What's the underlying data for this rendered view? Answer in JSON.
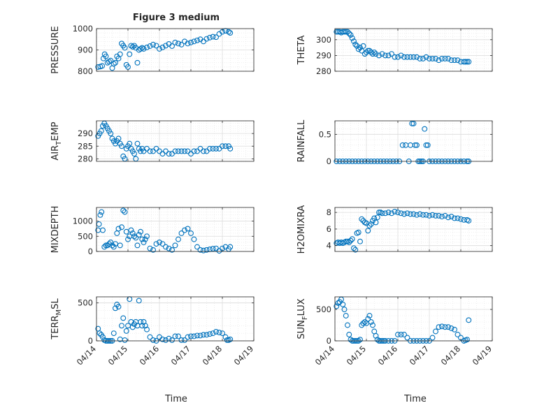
{
  "figure": {
    "title": "Figure 3 medium",
    "xlabel": "Time",
    "marker_color": "#0072bd",
    "grid": true
  },
  "chart_data": [
    {
      "type": "scatter",
      "ylabel": "PRESSURE",
      "sub": "",
      "x_ticks": [
        "04/14",
        "04/15",
        "04/16",
        "04/17",
        "04/18",
        "04/19"
      ],
      "xlim": [
        0,
        5
      ],
      "ylim": [
        800,
        1000
      ],
      "yticks": [
        800,
        900,
        1000
      ],
      "series": [
        {
          "x": [
            0.05,
            0.12,
            0.18,
            0.22,
            0.26,
            0.3,
            0.35,
            0.4,
            0.45,
            0.5,
            0.55,
            0.6,
            0.65,
            0.7,
            0.75,
            0.8,
            0.85,
            0.9,
            0.95,
            1.0,
            1.05,
            1.1,
            1.15,
            1.2,
            1.25,
            1.3,
            1.35,
            1.4,
            1.45,
            1.5,
            1.6,
            1.7,
            1.8,
            1.9,
            2.0,
            2.1,
            2.2,
            2.3,
            2.4,
            2.5,
            2.6,
            2.7,
            2.8,
            2.9,
            3.0,
            3.1,
            3.2,
            3.3,
            3.4,
            3.5,
            3.6,
            3.7,
            3.8,
            3.9,
            4.0,
            4.1,
            4.2,
            4.25
          ],
          "y": [
            820,
            822,
            825,
            860,
            880,
            870,
            840,
            845,
            850,
            815,
            835,
            840,
            870,
            860,
            880,
            930,
            920,
            910,
            830,
            820,
            880,
            920,
            915,
            920,
            910,
            840,
            900,
            905,
            910,
            905,
            912,
            918,
            925,
            920,
            905,
            912,
            920,
            928,
            918,
            935,
            930,
            925,
            940,
            930,
            935,
            940,
            945,
            950,
            940,
            952,
            958,
            962,
            960,
            975,
            985,
            990,
            985,
            980
          ]
        }
      ]
    },
    {
      "type": "scatter",
      "ylabel": "THETA",
      "sub": "",
      "x_ticks": [
        "04/14",
        "04/15",
        "04/16",
        "04/17",
        "04/18",
        "04/19"
      ],
      "xlim": [
        0,
        5
      ],
      "ylim": [
        280,
        307
      ],
      "yticks": [
        280,
        290,
        300
      ],
      "series": [
        {
          "x": [
            0.05,
            0.1,
            0.15,
            0.2,
            0.25,
            0.3,
            0.35,
            0.4,
            0.45,
            0.5,
            0.55,
            0.6,
            0.65,
            0.7,
            0.75,
            0.8,
            0.85,
            0.9,
            0.95,
            1.0,
            1.05,
            1.1,
            1.15,
            1.2,
            1.25,
            1.3,
            1.4,
            1.5,
            1.6,
            1.7,
            1.8,
            1.9,
            2.0,
            2.1,
            2.2,
            2.3,
            2.4,
            2.5,
            2.6,
            2.7,
            2.8,
            2.9,
            3.0,
            3.1,
            3.2,
            3.3,
            3.4,
            3.5,
            3.6,
            3.7,
            3.8,
            3.9,
            4.0,
            4.1,
            4.15,
            4.2,
            4.25
          ],
          "y": [
            305,
            305,
            305,
            304.5,
            305,
            305,
            305,
            305,
            304,
            303,
            301,
            299,
            297,
            296,
            294,
            295,
            293,
            296,
            291,
            292,
            293,
            293,
            292,
            291,
            292,
            291,
            290,
            291,
            290,
            290,
            291,
            289,
            289,
            290,
            289,
            289,
            289,
            289,
            289,
            288,
            288,
            289,
            288,
            288,
            288,
            287,
            288,
            288,
            288,
            287,
            287,
            287,
            286,
            286,
            286,
            286,
            286
          ]
        }
      ]
    },
    {
      "type": "scatter",
      "ylabel": "AIR_TEMP",
      "sub": "T",
      "x_ticks": [
        "04/14",
        "04/15",
        "04/16",
        "04/17",
        "04/18",
        "04/19"
      ],
      "xlim": [
        0,
        5
      ],
      "ylim": [
        279,
        295
      ],
      "yticks": [
        280,
        285,
        290
      ],
      "series": [
        {
          "x": [
            0.05,
            0.1,
            0.15,
            0.2,
            0.25,
            0.3,
            0.35,
            0.4,
            0.45,
            0.5,
            0.55,
            0.6,
            0.65,
            0.7,
            0.75,
            0.8,
            0.85,
            0.9,
            0.95,
            1.0,
            1.05,
            1.1,
            1.15,
            1.2,
            1.25,
            1.3,
            1.35,
            1.4,
            1.45,
            1.5,
            1.6,
            1.7,
            1.8,
            1.9,
            2.0,
            2.1,
            2.2,
            2.3,
            2.4,
            2.5,
            2.6,
            2.7,
            2.8,
            2.9,
            3.0,
            3.1,
            3.2,
            3.3,
            3.4,
            3.5,
            3.6,
            3.7,
            3.8,
            3.9,
            4.0,
            4.1,
            4.2,
            4.25
          ],
          "y": [
            289,
            290,
            291,
            293,
            294,
            293,
            292,
            291,
            290,
            288,
            287,
            286,
            287,
            288,
            286,
            285,
            281,
            280,
            284,
            285,
            286,
            284,
            283,
            282,
            280,
            286,
            284,
            283,
            284,
            283,
            284,
            283,
            283,
            284,
            283,
            282,
            283,
            282,
            282,
            283,
            283,
            283,
            283,
            283,
            282,
            283,
            283,
            284,
            283,
            283,
            284,
            284,
            284,
            284,
            285,
            285,
            285,
            284
          ]
        }
      ]
    },
    {
      "type": "scatter",
      "ylabel": "RAINFALL",
      "sub": "",
      "x_ticks": [
        "04/14",
        "04/15",
        "04/16",
        "04/17",
        "04/18",
        "04/19"
      ],
      "xlim": [
        0,
        5
      ],
      "ylim": [
        0,
        0.75
      ],
      "yticks": [
        0,
        0.5
      ],
      "series": [
        {
          "x": [
            0.05,
            0.15,
            0.25,
            0.35,
            0.45,
            0.55,
            0.65,
            0.75,
            0.85,
            0.95,
            1.05,
            1.15,
            1.25,
            1.35,
            1.45,
            1.55,
            1.65,
            1.75,
            1.85,
            1.95,
            2.05,
            2.15,
            2.25,
            2.35,
            2.4,
            2.45,
            2.5,
            2.55,
            2.6,
            2.65,
            2.7,
            2.75,
            2.8,
            2.85,
            2.9,
            2.95,
            3.0,
            3.1,
            3.2,
            3.3,
            3.4,
            3.5,
            3.6,
            3.7,
            3.8,
            3.9,
            4.0,
            4.1,
            4.2,
            4.25
          ],
          "y": [
            0,
            0,
            0,
            0,
            0,
            0,
            0,
            0,
            0,
            0,
            0,
            0,
            0,
            0,
            0,
            0,
            0,
            0,
            0,
            0,
            0,
            0.3,
            0.3,
            0,
            0.3,
            0.7,
            0.7,
            0.3,
            0.3,
            0,
            0,
            0,
            0,
            0.6,
            0.3,
            0.3,
            0,
            0,
            0,
            0,
            0,
            0,
            0,
            0,
            0,
            0,
            0,
            0,
            0,
            0
          ]
        }
      ]
    },
    {
      "type": "scatter",
      "ylabel": "MIXDEPTH",
      "sub": "",
      "x_ticks": [
        "04/14",
        "04/15",
        "04/16",
        "04/17",
        "04/18",
        "04/19"
      ],
      "xlim": [
        0,
        5
      ],
      "ylim": [
        0,
        1450
      ],
      "yticks": [
        0,
        500,
        1000
      ],
      "series": [
        {
          "x": [
            0.05,
            0.08,
            0.12,
            0.16,
            0.2,
            0.25,
            0.3,
            0.35,
            0.4,
            0.45,
            0.5,
            0.55,
            0.6,
            0.65,
            0.7,
            0.75,
            0.8,
            0.85,
            0.9,
            0.95,
            1.0,
            1.05,
            1.1,
            1.15,
            1.2,
            1.25,
            1.3,
            1.35,
            1.4,
            1.45,
            1.5,
            1.55,
            1.6,
            1.7,
            1.8,
            1.9,
            2.0,
            2.1,
            2.2,
            2.3,
            2.4,
            2.5,
            2.6,
            2.7,
            2.8,
            2.9,
            3.0,
            3.1,
            3.2,
            3.3,
            3.4,
            3.5,
            3.6,
            3.7,
            3.8,
            3.9,
            4.0,
            4.1,
            4.2,
            4.25
          ],
          "y": [
            700,
            900,
            1200,
            1300,
            700,
            150,
            200,
            200,
            250,
            300,
            200,
            150,
            250,
            600,
            750,
            200,
            800,
            1350,
            1300,
            650,
            400,
            500,
            700,
            600,
            500,
            450,
            200,
            550,
            650,
            400,
            300,
            400,
            500,
            100,
            50,
            250,
            300,
            250,
            150,
            100,
            50,
            200,
            400,
            600,
            700,
            750,
            600,
            400,
            150,
            50,
            30,
            50,
            70,
            90,
            100,
            20,
            100,
            150,
            80,
            150
          ]
        }
      ]
    },
    {
      "type": "scatter",
      "ylabel": "H2OMIXRA",
      "sub": "",
      "x_ticks": [
        "04/14",
        "04/15",
        "04/16",
        "04/17",
        "04/18",
        "04/19"
      ],
      "xlim": [
        0,
        5
      ],
      "ylim": [
        3.3,
        8.6
      ],
      "yticks": [
        4,
        6,
        8
      ],
      "series": [
        {
          "x": [
            0.05,
            0.1,
            0.15,
            0.2,
            0.25,
            0.3,
            0.35,
            0.4,
            0.45,
            0.5,
            0.55,
            0.6,
            0.65,
            0.7,
            0.75,
            0.8,
            0.85,
            0.9,
            0.95,
            1.0,
            1.05,
            1.1,
            1.15,
            1.2,
            1.25,
            1.3,
            1.35,
            1.4,
            1.45,
            1.5,
            1.6,
            1.7,
            1.8,
            1.9,
            2.0,
            2.1,
            2.2,
            2.3,
            2.4,
            2.5,
            2.6,
            2.7,
            2.8,
            2.9,
            3.0,
            3.1,
            3.2,
            3.3,
            3.4,
            3.5,
            3.6,
            3.7,
            3.8,
            3.9,
            4.0,
            4.1,
            4.2,
            4.25
          ],
          "y": [
            4.3,
            4.4,
            4.3,
            4.4,
            4.3,
            4.4,
            4.5,
            4.5,
            4.4,
            4.6,
            4.8,
            3.7,
            3.5,
            5.5,
            5.6,
            4.5,
            7.2,
            7.0,
            6.8,
            6.7,
            5.8,
            6.4,
            6.6,
            7.0,
            7.3,
            6.8,
            7.4,
            8.0,
            8.0,
            7.9,
            7.9,
            8.0,
            7.9,
            8.1,
            8.0,
            7.9,
            7.8,
            7.9,
            7.8,
            7.8,
            7.7,
            7.8,
            7.7,
            7.7,
            7.6,
            7.7,
            7.6,
            7.6,
            7.5,
            7.6,
            7.4,
            7.5,
            7.3,
            7.3,
            7.2,
            7.1,
            7.1,
            7.0
          ]
        }
      ]
    },
    {
      "type": "scatter",
      "ylabel": "TERR_MSL",
      "sub": "M",
      "x_ticks": [
        "04/14",
        "04/15",
        "04/16",
        "04/17",
        "04/18",
        "04/19"
      ],
      "xlim": [
        0,
        5
      ],
      "ylim": [
        0,
        580
      ],
      "yticks": [
        0,
        500
      ],
      "series": [
        {
          "x": [
            0.05,
            0.1,
            0.15,
            0.2,
            0.25,
            0.3,
            0.35,
            0.4,
            0.45,
            0.5,
            0.55,
            0.6,
            0.65,
            0.7,
            0.75,
            0.8,
            0.85,
            0.9,
            0.95,
            1.0,
            1.05,
            1.1,
            1.15,
            1.2,
            1.25,
            1.3,
            1.35,
            1.4,
            1.45,
            1.5,
            1.55,
            1.6,
            1.7,
            1.8,
            1.9,
            2.0,
            2.1,
            2.2,
            2.3,
            2.4,
            2.5,
            2.6,
            2.7,
            2.8,
            2.9,
            3.0,
            3.1,
            3.2,
            3.3,
            3.4,
            3.5,
            3.6,
            3.7,
            3.8,
            3.9,
            4.0,
            4.1,
            4.15,
            4.2,
            4.25
          ],
          "y": [
            160,
            100,
            80,
            50,
            10,
            0,
            0,
            0,
            0,
            0,
            100,
            430,
            480,
            450,
            20,
            200,
            300,
            10,
            130,
            200,
            550,
            250,
            180,
            220,
            250,
            200,
            530,
            250,
            200,
            250,
            200,
            150,
            50,
            10,
            0,
            50,
            20,
            10,
            30,
            10,
            60,
            60,
            10,
            10,
            50,
            60,
            60,
            70,
            70,
            80,
            80,
            90,
            100,
            120,
            110,
            100,
            50,
            10,
            10,
            20
          ]
        }
      ]
    },
    {
      "type": "scatter",
      "ylabel": "SUN_FLUX",
      "sub": "F",
      "x_ticks": [
        "04/14",
        "04/15",
        "04/16",
        "04/17",
        "04/18",
        "04/19"
      ],
      "xlim": [
        0,
        5
      ],
      "ylim": [
        0,
        700
      ],
      "yticks": [
        0,
        500
      ],
      "series": [
        {
          "x": [
            0.05,
            0.1,
            0.15,
            0.2,
            0.25,
            0.3,
            0.35,
            0.4,
            0.45,
            0.5,
            0.55,
            0.6,
            0.65,
            0.7,
            0.75,
            0.8,
            0.85,
            0.9,
            0.95,
            1.0,
            1.05,
            1.1,
            1.15,
            1.2,
            1.25,
            1.3,
            1.35,
            1.4,
            1.45,
            1.5,
            1.55,
            1.6,
            1.7,
            1.8,
            1.9,
            2.0,
            2.1,
            2.2,
            2.3,
            2.4,
            2.5,
            2.6,
            2.7,
            2.8,
            2.9,
            3.0,
            3.1,
            3.2,
            3.3,
            3.4,
            3.5,
            3.6,
            3.7,
            3.8,
            3.9,
            4.0,
            4.1,
            4.15,
            4.2,
            4.25
          ],
          "y": [
            550,
            600,
            620,
            660,
            580,
            500,
            400,
            250,
            100,
            20,
            0,
            0,
            0,
            0,
            0,
            20,
            250,
            280,
            300,
            280,
            350,
            400,
            300,
            250,
            150,
            80,
            20,
            0,
            0,
            0,
            0,
            0,
            0,
            0,
            0,
            100,
            100,
            100,
            50,
            0,
            0,
            0,
            0,
            0,
            0,
            0,
            50,
            150,
            220,
            230,
            220,
            220,
            200,
            180,
            100,
            50,
            0,
            10,
            20,
            330
          ]
        }
      ]
    }
  ]
}
